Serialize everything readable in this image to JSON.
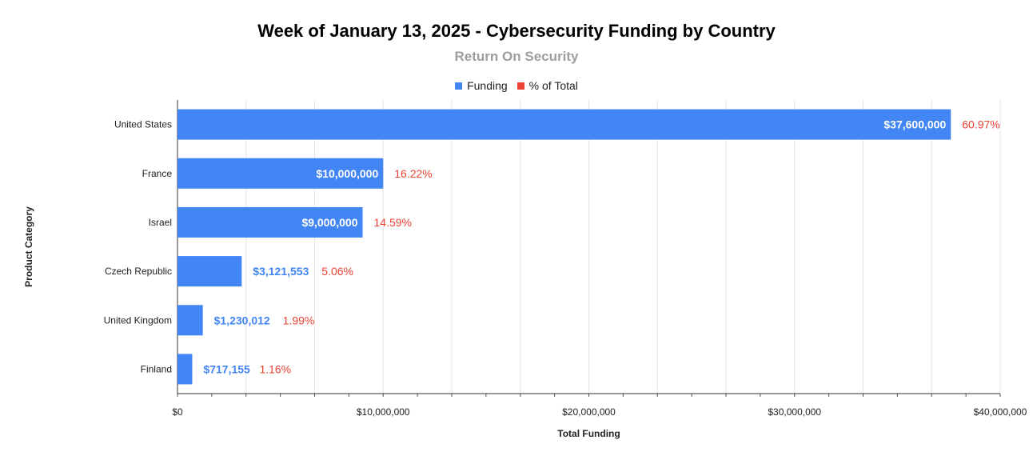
{
  "chart_data": {
    "type": "bar",
    "orientation": "horizontal",
    "title": "Week of January 13, 2025 - Cybersecurity Funding by Country",
    "subtitle": "Return On Security",
    "xlabel": "Total Funding",
    "ylabel": "Product Category",
    "categories": [
      "United States",
      "France",
      "Israel",
      "Czech Republic",
      "United Kingdom",
      "Finland"
    ],
    "series": [
      {
        "name": "Funding",
        "values": [
          37600000,
          10000000,
          9000000,
          3121553,
          1230012,
          717155
        ],
        "labels": [
          "$37,600,000",
          "$10,000,000",
          "$9,000,000",
          "$3,121,553",
          "$1,230,012",
          "$717,155"
        ],
        "color": "#4285f4"
      },
      {
        "name": "% of Total",
        "values": [
          60.97,
          16.22,
          14.59,
          5.06,
          1.99,
          1.16
        ],
        "labels": [
          "60.97%",
          "16.22%",
          "14.59%",
          "5.06%",
          "1.99%",
          "1.16%"
        ],
        "color": "#ea4335"
      }
    ],
    "xlim": [
      0,
      40000000
    ],
    "xticks": [
      0,
      10000000,
      20000000,
      30000000,
      40000000
    ],
    "xtick_labels": [
      "$0",
      "$10,000,000",
      "$20,000,000",
      "$30,000,000",
      "$40,000,000"
    ],
    "grid": true,
    "legend_position": "top"
  }
}
